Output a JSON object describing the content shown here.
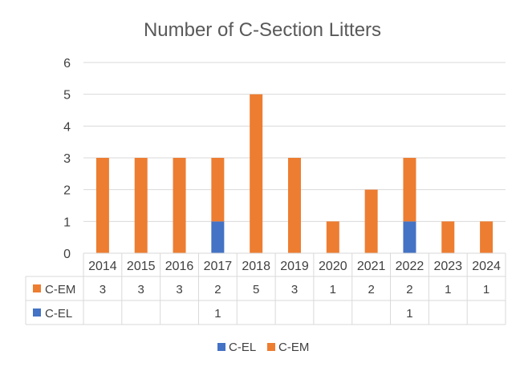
{
  "chart_data": {
    "type": "bar",
    "stacked": true,
    "title": "Number of C-Section Litters",
    "categories": [
      "2014",
      "2015",
      "2016",
      "2017",
      "2018",
      "2019",
      "2020",
      "2021",
      "2022",
      "2023",
      "2024"
    ],
    "series": [
      {
        "name": "C-EM",
        "values": [
          3,
          3,
          3,
          2,
          5,
          3,
          1,
          2,
          2,
          1,
          1
        ],
        "color": "#ED7D31"
      },
      {
        "name": "C-EL",
        "values": [
          null,
          null,
          null,
          1,
          null,
          null,
          null,
          null,
          1,
          null,
          null
        ],
        "color": "#4472C4"
      }
    ],
    "ylim": [
      0,
      6
    ],
    "yticks": [
      0,
      1,
      2,
      3,
      4,
      5,
      6
    ],
    "grid": true,
    "data_table": true,
    "legend": {
      "position": "bottom",
      "entries": [
        "C-EL",
        "C-EM"
      ]
    }
  }
}
